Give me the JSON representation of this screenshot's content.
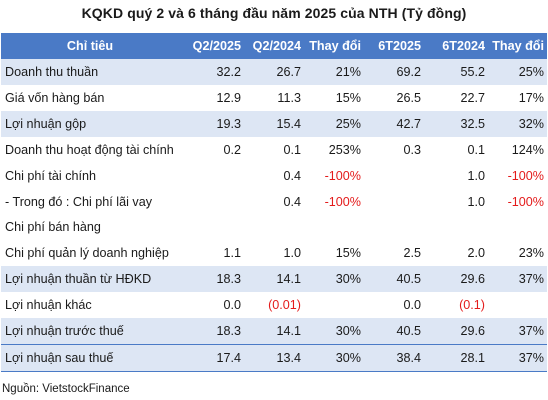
{
  "title": "KQKD quý 2 và 6 tháng đầu năm 2025 của NTH (Tỷ đồng)",
  "header": {
    "name": "Chỉ tiêu",
    "q2_2025": "Q2/2025",
    "q2_2024": "Q2/2024",
    "change_q": "Thay đổi",
    "h1_2025": "6T2025",
    "h1_2024": "6T2024",
    "change_h": "Thay đổi"
  },
  "rows": [
    {
      "name": "Doanh thu thuần",
      "q2_2025": "32.2",
      "q2_2024": "26.7",
      "change_q": "21%",
      "h1_2025": "69.2",
      "h1_2024": "55.2",
      "change_h": "25%"
    },
    {
      "name": "Giá vốn hàng bán",
      "q2_2025": "12.9",
      "q2_2024": "11.3",
      "change_q": "15%",
      "h1_2025": "26.5",
      "h1_2024": "22.7",
      "change_h": "17%"
    },
    {
      "name": "Lợi nhuận gộp",
      "q2_2025": "19.3",
      "q2_2024": "15.4",
      "change_q": "25%",
      "h1_2025": "42.7",
      "h1_2024": "32.5",
      "change_h": "32%"
    },
    {
      "name": "Doanh thu hoạt động tài chính",
      "q2_2025": "0.2",
      "q2_2024": "0.1",
      "change_q": "253%",
      "h1_2025": "0.3",
      "h1_2024": "0.1",
      "change_h": "124%"
    },
    {
      "name": "Chi phí tài chính",
      "q2_2025": "",
      "q2_2024": "0.4",
      "change_q": "-100%",
      "h1_2025": "",
      "h1_2024": "1.0",
      "change_h": "-100%"
    },
    {
      "name": "- Trong đó : Chi phí lãi vay",
      "q2_2025": "",
      "q2_2024": "0.4",
      "change_q": "-100%",
      "h1_2025": "",
      "h1_2024": "1.0",
      "change_h": "-100%"
    },
    {
      "name": "Chi phí bán hàng",
      "q2_2025": "",
      "q2_2024": "",
      "change_q": "",
      "h1_2025": "",
      "h1_2024": "",
      "change_h": ""
    },
    {
      "name": "Chi phí quản lý doanh nghiệp",
      "q2_2025": "1.1",
      "q2_2024": "1.0",
      "change_q": "15%",
      "h1_2025": "2.5",
      "h1_2024": "2.0",
      "change_h": "23%"
    },
    {
      "name": "Lợi nhuận thuần từ HĐKD",
      "q2_2025": "18.3",
      "q2_2024": "14.1",
      "change_q": "30%",
      "h1_2025": "40.5",
      "h1_2024": "29.6",
      "change_h": "37%"
    },
    {
      "name": "Lợi nhuận khác",
      "q2_2025": "0.0",
      "q2_2024": "(0.01)",
      "change_q": "",
      "h1_2025": "0.0",
      "h1_2024": "(0.1)",
      "change_h": ""
    },
    {
      "name": "Lợi nhuận trước thuế",
      "q2_2025": "18.3",
      "q2_2024": "14.1",
      "change_q": "30%",
      "h1_2025": "40.5",
      "h1_2024": "29.6",
      "change_h": "37%"
    },
    {
      "name": "Lợi nhuận sau thuế",
      "q2_2025": "17.4",
      "q2_2024": "13.4",
      "change_q": "30%",
      "h1_2025": "38.4",
      "h1_2024": "28.1",
      "change_h": "37%"
    }
  ],
  "source": "Nguồn: VietstockFinance",
  "colors": {
    "header_bg": "#4a7ac6",
    "shade_bg": "#dde6f4",
    "negative": "#e41b1b"
  }
}
